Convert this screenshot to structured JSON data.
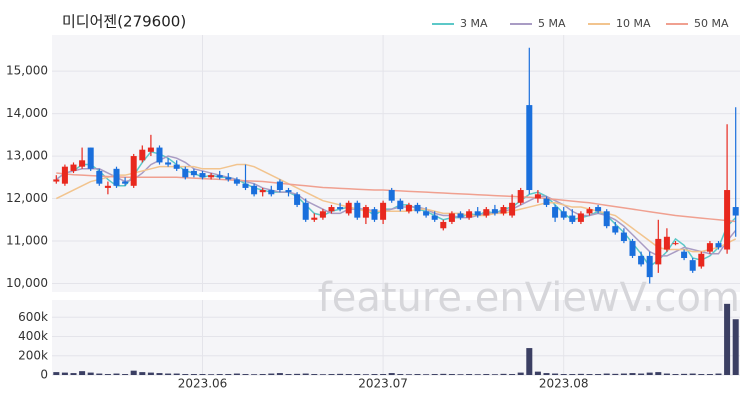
{
  "chart_data": {
    "type": "candlestick",
    "title": "미디어젠(279600)",
    "watermark": "feature.enViewV.com",
    "up_color": "#e8281e",
    "down_color": "#1a6fdc",
    "volume_color": "#3b3f63",
    "ylim": [
      9800,
      15850
    ],
    "yticks": [
      {
        "value": 10000,
        "label": "10,000"
      },
      {
        "value": 11000,
        "label": "11,000"
      },
      {
        "value": 12000,
        "label": "12,000"
      },
      {
        "value": 13000,
        "label": "13,000"
      },
      {
        "value": 14000,
        "label": "14,000"
      },
      {
        "value": 15000,
        "label": "15,000"
      }
    ],
    "volume_ylim": [
      0,
      780000
    ],
    "volume_yticks": [
      0,
      {
        "value": 200000,
        "label": "200k"
      },
      {
        "value": 400000,
        "label": "400k"
      },
      {
        "value": 600000,
        "label": "600k"
      }
    ],
    "xticks": [
      {
        "value": 17,
        "label": "2023.06"
      },
      {
        "value": 38,
        "label": "2023.07"
      },
      {
        "value": 59,
        "label": "2023.08"
      }
    ],
    "grid": true,
    "ohlc": [
      [
        12400,
        12550,
        12350,
        12450
      ],
      [
        12350,
        12800,
        12300,
        12750
      ],
      [
        12650,
        12850,
        12600,
        12800
      ],
      [
        12750,
        13200,
        12700,
        12900
      ],
      [
        13200,
        13200,
        12650,
        12700
      ],
      [
        12650,
        12700,
        12300,
        12350
      ],
      [
        12250,
        12400,
        12100,
        12300
      ],
      [
        12700,
        12750,
        12250,
        12300
      ],
      [
        12400,
        12500,
        12300,
        12350
      ],
      [
        12300,
        13050,
        12250,
        13000
      ],
      [
        12900,
        13250,
        12850,
        13150
      ],
      [
        13100,
        13500,
        13000,
        13200
      ],
      [
        13200,
        13250,
        12800,
        12850
      ],
      [
        12850,
        12950,
        12750,
        12800
      ],
      [
        12800,
        12900,
        12650,
        12700
      ],
      [
        12700,
        12750,
        12450,
        12500
      ],
      [
        12650,
        12700,
        12500,
        12550
      ],
      [
        12600,
        12650,
        12450,
        12500
      ],
      [
        12500,
        12600,
        12450,
        12550
      ],
      [
        12550,
        12650,
        12450,
        12500
      ],
      [
        12500,
        12600,
        12400,
        12450
      ],
      [
        12450,
        12500,
        12300,
        12350
      ],
      [
        12350,
        12800,
        12200,
        12250
      ],
      [
        12300,
        12350,
        12050,
        12100
      ],
      [
        12150,
        12250,
        12050,
        12200
      ],
      [
        12200,
        12300,
        12050,
        12100
      ],
      [
        12400,
        12450,
        12150,
        12200
      ],
      [
        12200,
        12250,
        12050,
        12150
      ],
      [
        12100,
        12150,
        11800,
        11850
      ],
      [
        11900,
        12000,
        11450,
        11500
      ],
      [
        11500,
        11650,
        11450,
        11550
      ],
      [
        11550,
        11750,
        11500,
        11700
      ],
      [
        11700,
        11850,
        11650,
        11800
      ],
      [
        11800,
        11900,
        11700,
        11750
      ],
      [
        11650,
        11950,
        11600,
        11900
      ],
      [
        11900,
        11950,
        11500,
        11550
      ],
      [
        11550,
        11850,
        11400,
        11800
      ],
      [
        11750,
        11800,
        11450,
        11500
      ],
      [
        11500,
        11950,
        11400,
        11900
      ],
      [
        12200,
        12250,
        11900,
        11950
      ],
      [
        11950,
        12000,
        11700,
        11750
      ],
      [
        11700,
        11900,
        11650,
        11850
      ],
      [
        11850,
        11900,
        11650,
        11700
      ],
      [
        11700,
        11800,
        11550,
        11600
      ],
      [
        11600,
        11700,
        11450,
        11500
      ],
      [
        11300,
        11500,
        11250,
        11450
      ],
      [
        11450,
        11700,
        11400,
        11650
      ],
      [
        11650,
        11700,
        11500,
        11550
      ],
      [
        11550,
        11750,
        11500,
        11700
      ],
      [
        11700,
        11800,
        11550,
        11600
      ],
      [
        11600,
        11800,
        11550,
        11750
      ],
      [
        11750,
        11850,
        11600,
        11650
      ],
      [
        11650,
        11850,
        11600,
        11800
      ],
      [
        11600,
        12100,
        11550,
        11900
      ],
      [
        11900,
        12250,
        11850,
        12200
      ],
      [
        14200,
        15550,
        12100,
        12200
      ],
      [
        12000,
        12200,
        11900,
        12100
      ],
      [
        12000,
        12050,
        11800,
        11850
      ],
      [
        11800,
        11850,
        11450,
        11550
      ],
      [
        11700,
        11800,
        11500,
        11550
      ],
      [
        11600,
        11750,
        11400,
        11450
      ],
      [
        11450,
        11700,
        11400,
        11650
      ],
      [
        11650,
        11800,
        11600,
        11750
      ],
      [
        11800,
        11850,
        11650,
        11700
      ],
      [
        11700,
        11750,
        11300,
        11350
      ],
      [
        11350,
        11450,
        11150,
        11200
      ],
      [
        11200,
        11300,
        10950,
        11000
      ],
      [
        11000,
        11050,
        10600,
        10650
      ],
      [
        10650,
        10750,
        10400,
        10450
      ],
      [
        10650,
        10750,
        10000,
        10150
      ],
      [
        10450,
        11500,
        10250,
        11050
      ],
      [
        10800,
        11300,
        10750,
        11100
      ],
      [
        10950,
        11000,
        10900,
        10950
      ],
      [
        10750,
        10800,
        10550,
        10600
      ],
      [
        10550,
        10600,
        10250,
        10300
      ],
      [
        10400,
        10750,
        10350,
        10700
      ],
      [
        10750,
        11000,
        10700,
        10950
      ],
      [
        10950,
        11000,
        10800,
        10850
      ],
      [
        10800,
        13750,
        10700,
        12200
      ],
      [
        11800,
        14150,
        11100,
        11600
      ]
    ],
    "volume": [
      30000,
      25000,
      20000,
      40000,
      25000,
      15000,
      10000,
      15000,
      10000,
      45000,
      30000,
      25000,
      20000,
      15000,
      15000,
      10000,
      10000,
      10000,
      8000,
      10000,
      10000,
      15000,
      10000,
      8000,
      10000,
      15000,
      20000,
      10000,
      12000,
      15000,
      10000,
      8000,
      10000,
      12000,
      10000,
      10000,
      8000,
      10000,
      10000,
      20000,
      10000,
      8000,
      10000,
      8000,
      10000,
      12000,
      10000,
      8000,
      10000,
      8000,
      10000,
      8000,
      12000,
      10000,
      25000,
      280000,
      35000,
      20000,
      15000,
      10000,
      10000,
      12000,
      10000,
      10000,
      15000,
      12000,
      15000,
      20000,
      15000,
      25000,
      30000,
      15000,
      10000,
      12000,
      15000,
      10000,
      10000,
      15000,
      740000,
      580000
    ],
    "series": [
      {
        "name": "3 MA",
        "color": "#5cc8c8",
        "values": [
          12450,
          12600,
          12650,
          12800,
          12800,
          12650,
          12450,
          12300,
          12300,
          12550,
          12850,
          13100,
          13050,
          12950,
          12800,
          12650,
          12600,
          12500,
          12550,
          12500,
          12500,
          12450,
          12350,
          12250,
          12200,
          12150,
          12150,
          12150,
          12050,
          11850,
          11650,
          11600,
          11700,
          11750,
          11800,
          11750,
          11750,
          11600,
          11750,
          11750,
          11850,
          11850,
          11750,
          11700,
          11600,
          11500,
          11550,
          11550,
          11650,
          11600,
          11700,
          11650,
          11750,
          11800,
          11950,
          12100,
          12150,
          12050,
          11850,
          11650,
          11500,
          11550,
          11600,
          11700,
          11600,
          11400,
          11200,
          10950,
          10700,
          10400,
          10550,
          10750,
          11050,
          10900,
          10600,
          10550,
          10650,
          10850,
          11350,
          11550
        ]
      },
      {
        "name": "5 MA",
        "color": "#a99cc4",
        "values": [
          12450,
          12600,
          12650,
          12700,
          12700,
          12700,
          12600,
          12500,
          12400,
          12450,
          12600,
          12800,
          12900,
          13000,
          12950,
          12850,
          12700,
          12650,
          12600,
          12550,
          12500,
          12450,
          12400,
          12350,
          12250,
          12200,
          12150,
          12150,
          12100,
          11950,
          11850,
          11750,
          11650,
          11650,
          11750,
          11750,
          11750,
          11700,
          11700,
          11750,
          11800,
          11800,
          11800,
          11750,
          11650,
          11600,
          11600,
          11550,
          11550,
          11600,
          11650,
          11650,
          11700,
          11750,
          11850,
          11950,
          12050,
          12050,
          11950,
          11850,
          11700,
          11600,
          11600,
          11650,
          11600,
          11500,
          11350,
          11150,
          10950,
          10750,
          10650,
          10650,
          10750,
          10850,
          10800,
          10750,
          10700,
          10700,
          11000,
          11250
        ]
      },
      {
        "name": "10 MA",
        "color": "#f2c48e",
        "values": [
          12000,
          12100,
          12200,
          12300,
          12400,
          12450,
          12500,
          12550,
          12550,
          12600,
          12650,
          12700,
          12750,
          12750,
          12750,
          12750,
          12750,
          12700,
          12700,
          12700,
          12750,
          12800,
          12800,
          12750,
          12650,
          12550,
          12450,
          12350,
          12250,
          12150,
          12050,
          11950,
          11900,
          11850,
          11800,
          11750,
          11700,
          11700,
          11700,
          11700,
          11700,
          11700,
          11750,
          11750,
          11700,
          11650,
          11650,
          11650,
          11600,
          11600,
          11600,
          11650,
          11650,
          11700,
          11750,
          11800,
          11850,
          11900,
          11900,
          11850,
          11800,
          11800,
          11750,
          11700,
          11650,
          11600,
          11450,
          11300,
          11150,
          11000,
          10850,
          10800,
          10800,
          10800,
          10750,
          10750,
          10800,
          10850,
          10950,
          11050
        ]
      },
      {
        "name": "50 MA",
        "color": "#f0a090",
        "values": [
          12600,
          12580,
          12560,
          12550,
          12540,
          12530,
          12520,
          12510,
          12500,
          12500,
          12500,
          12500,
          12500,
          12500,
          12500,
          12490,
          12480,
          12470,
          12460,
          12450,
          12440,
          12430,
          12420,
          12410,
          12400,
          12380,
          12360,
          12340,
          12320,
          12300,
          12280,
          12260,
          12250,
          12240,
          12230,
          12220,
          12210,
          12200,
          12200,
          12190,
          12180,
          12170,
          12160,
          12150,
          12140,
          12130,
          12120,
          12110,
          12100,
          12090,
          12080,
          12070,
          12060,
          12050,
          12040,
          12030,
          12020,
          12000,
          11980,
          11960,
          11940,
          11920,
          11900,
          11870,
          11840,
          11810,
          11780,
          11750,
          11720,
          11690,
          11660,
          11630,
          11600,
          11580,
          11560,
          11540,
          11520,
          11500,
          11480,
          11460
        ]
      }
    ]
  }
}
